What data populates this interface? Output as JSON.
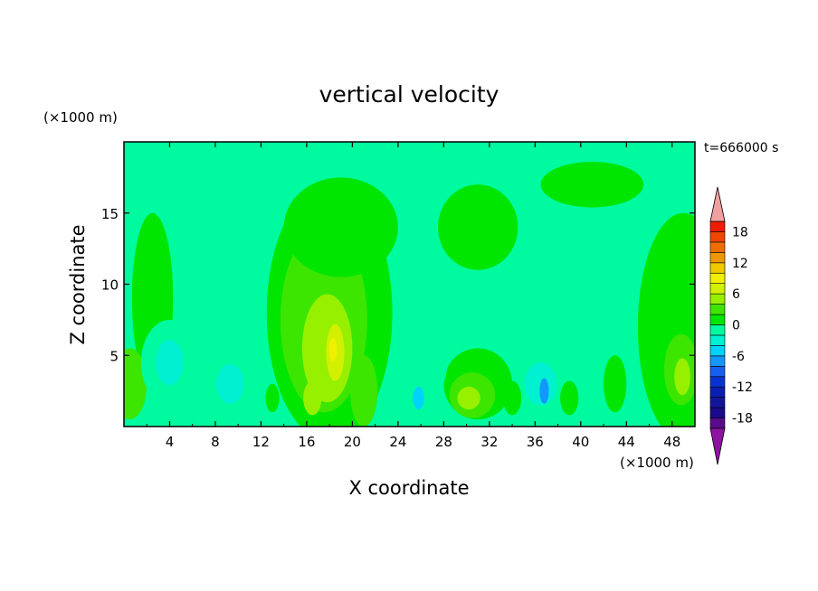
{
  "chart_data": {
    "type": "heatmap",
    "title": "vertical velocity",
    "xlabel": "X coordinate",
    "ylabel": "Z coordinate",
    "x_unit": "(×1000 m)",
    "y_unit": "(×1000 m)",
    "time_label": "t=666000 s",
    "xlim": [
      0,
      50
    ],
    "ylim": [
      0,
      20
    ],
    "xticks": [
      "4",
      "8",
      "12",
      "16",
      "20",
      "24",
      "28",
      "32",
      "36",
      "40",
      "44",
      "48"
    ],
    "yticks": [
      "5",
      "10",
      "15"
    ],
    "colorbar": {
      "levels": [
        -20,
        -18,
        -16,
        -14,
        -12,
        -10,
        -8,
        -6,
        -4,
        -2,
        0,
        2,
        4,
        6,
        8,
        10,
        12,
        14,
        16,
        18,
        20
      ],
      "tick_labels": [
        "18",
        "12",
        "6",
        "0",
        "-6",
        "-12",
        "-18"
      ],
      "colors": [
        "#5a0a8c",
        "#1a0a8c",
        "#14149a",
        "#0a1eb4",
        "#0a32d2",
        "#1460f0",
        "#1496ff",
        "#00d2ff",
        "#00f0d2",
        "#00faa0",
        "#00e600",
        "#3ce600",
        "#96f000",
        "#d2f000",
        "#f0f000",
        "#f0c800",
        "#f09600",
        "#f06e00",
        "#f04600",
        "#f01e00"
      ],
      "under_color": "#8c14a0",
      "over_color": "#f0a0a0"
    },
    "blobs": [
      {
        "x": 18,
        "z": 8,
        "rx": 5.5,
        "rz": 9,
        "v": 1
      },
      {
        "x": 17.5,
        "z": 7.5,
        "rx": 3.8,
        "rz": 6.5,
        "v": 3
      },
      {
        "x": 17.8,
        "z": 5.5,
        "rx": 2.2,
        "rz": 3.8,
        "v": 5
      },
      {
        "x": 18.5,
        "z": 5.2,
        "rx": 0.8,
        "rz": 2,
        "v": 7
      },
      {
        "x": 18.3,
        "z": 5.4,
        "rx": 0.35,
        "rz": 0.8,
        "v": 9
      },
      {
        "x": 16.5,
        "z": 2,
        "rx": 0.8,
        "rz": 1.2,
        "v": 5
      },
      {
        "x": 21,
        "z": 2.5,
        "rx": 1.2,
        "rz": 2.5,
        "v": 3
      },
      {
        "x": 19,
        "z": 14,
        "rx": 5,
        "rz": 3.5,
        "v": 1
      },
      {
        "x": 31,
        "z": 14,
        "rx": 3.5,
        "rz": 3,
        "v": 1
      },
      {
        "x": 31,
        "z": 3,
        "rx": 3,
        "rz": 2.5,
        "v": 1
      },
      {
        "x": 30.5,
        "z": 2.2,
        "rx": 2,
        "rz": 1.6,
        "v": 3
      },
      {
        "x": 30.2,
        "z": 2,
        "rx": 1,
        "rz": 0.8,
        "v": 5
      },
      {
        "x": 41,
        "z": 17,
        "rx": 4.5,
        "rz": 1.6,
        "v": 1
      },
      {
        "x": 49,
        "z": 7,
        "rx": 4,
        "rz": 8,
        "v": 1
      },
      {
        "x": 48.8,
        "z": 4,
        "rx": 1.5,
        "rz": 2.5,
        "v": 3
      },
      {
        "x": 48.9,
        "z": 3.5,
        "rx": 0.7,
        "rz": 1.3,
        "v": 5
      },
      {
        "x": 2.5,
        "z": 9,
        "rx": 1.8,
        "rz": 6,
        "v": 1
      },
      {
        "x": 0.5,
        "z": 3,
        "rx": 1.5,
        "rz": 2.5,
        "v": 3
      },
      {
        "x": 4,
        "z": 4.5,
        "rx": 2.5,
        "rz": 3,
        "v": -1
      },
      {
        "x": 4,
        "z": 4.5,
        "rx": 1.2,
        "rz": 1.6,
        "v": -3
      },
      {
        "x": 9.5,
        "z": 3,
        "rx": 2.5,
        "rz": 2.5,
        "v": -1
      },
      {
        "x": 9.3,
        "z": 3,
        "rx": 1.2,
        "rz": 1.4,
        "v": -3
      },
      {
        "x": 26,
        "z": 6,
        "rx": 2.5,
        "rz": 5,
        "v": -1
      },
      {
        "x": 25.8,
        "z": 2,
        "rx": 0.5,
        "rz": 0.8,
        "v": -5
      },
      {
        "x": 36.5,
        "z": 3.5,
        "rx": 2.5,
        "rz": 2.5,
        "v": -1
      },
      {
        "x": 36.5,
        "z": 3,
        "rx": 1.4,
        "rz": 1.5,
        "v": -3
      },
      {
        "x": 36.8,
        "z": 2.5,
        "rx": 0.4,
        "rz": 0.9,
        "v": -7
      },
      {
        "x": 38.5,
        "z": 10.5,
        "rx": 2.5,
        "rz": 1.2,
        "v": -1
      },
      {
        "x": 42,
        "z": 8,
        "rx": 1,
        "rz": 3,
        "v": -1
      },
      {
        "x": 43,
        "z": 3,
        "rx": 1,
        "rz": 2,
        "v": 1
      },
      {
        "x": 39,
        "z": 2,
        "rx": 0.8,
        "rz": 1.2,
        "v": 1
      },
      {
        "x": 34,
        "z": 2,
        "rx": 0.8,
        "rz": 1.2,
        "v": 1
      },
      {
        "x": 13,
        "z": 2,
        "rx": 0.6,
        "rz": 1,
        "v": 1
      }
    ]
  }
}
